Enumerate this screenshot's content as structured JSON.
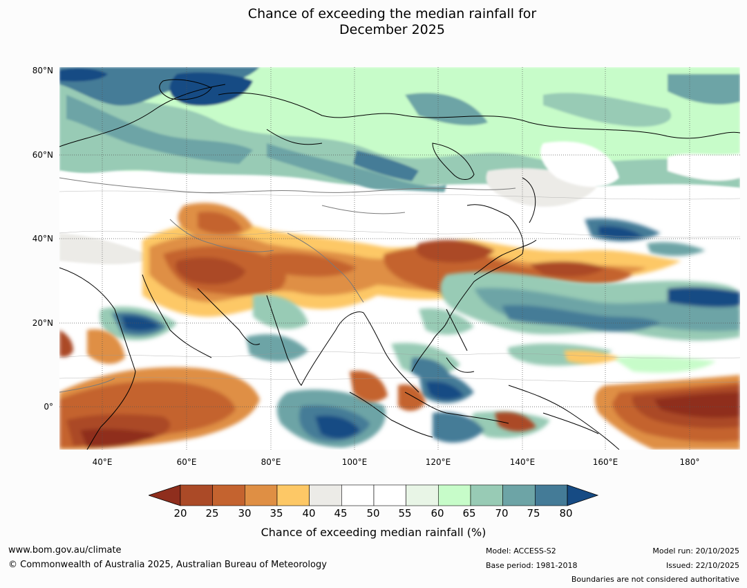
{
  "title": {
    "line1": "Chance of exceeding the median rainfall for",
    "line2": "December 2025"
  },
  "map": {
    "lat_labels": [
      "80°N",
      "60°N",
      "40°N",
      "20°N",
      "0°"
    ],
    "lon_labels": [
      "40°E",
      "60°E",
      "80°E",
      "100°E",
      "120°E",
      "140°E",
      "160°E",
      "180°"
    ]
  },
  "colorbar": {
    "ticks": [
      "20",
      "25",
      "30",
      "35",
      "40",
      "45",
      "50",
      "55",
      "60",
      "65",
      "70",
      "75",
      "80"
    ],
    "colors": [
      "#8f2e1d",
      "#ab4a27",
      "#c4632f",
      "#df8f44",
      "#fdc866",
      "#ecebe7",
      "#ffffff",
      "#ffffff",
      "#e8f5e6",
      "#c7fcc9",
      "#98cbb5",
      "#6da4a6",
      "#447b97",
      "#164b84"
    ],
    "title": "Chance of exceeding median rainfall (%)"
  },
  "footer": {
    "url": "www.bom.gov.au/climate",
    "copyright": "© Commonwealth of Australia 2025, Australian Bureau of Meteorology",
    "model": "Model: ACCESS-S2",
    "base_period": "Base period: 1981-2018",
    "model_run": "Model run: 20/10/2025",
    "issued": "Issued: 22/10/2025",
    "disclaimer": "Boundaries are not considered authoritative"
  }
}
